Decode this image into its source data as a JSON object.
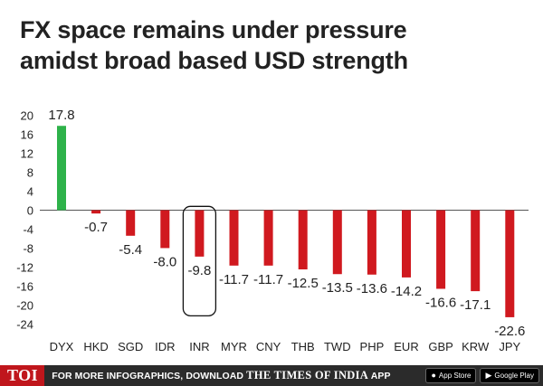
{
  "title_line1": "FX space remains under pressure",
  "title_line2": "amidst broad based USD strength",
  "colors": {
    "positive": "#2eb24a",
    "negative": "#d0191f",
    "footer_bg": "#2b2b2b",
    "logo_bg": "#c0161c"
  },
  "footer": {
    "logo": "TOI",
    "promo": "FOR MORE INFOGRAPHICS, DOWNLOAD",
    "brand": "THE TIMES OF INDIA",
    "app": "APP",
    "app_store": "App Store",
    "google_play": "Google Play"
  },
  "chart_data": {
    "type": "bar",
    "title": "FX space remains under pressure amidst broad based USD strength",
    "xlabel": "",
    "ylabel": "",
    "ylim": [
      -24,
      20
    ],
    "yticks": [
      20,
      16,
      12,
      8,
      4,
      0,
      -4,
      -8,
      -12,
      -16,
      -20,
      -24
    ],
    "ytick_labels": [
      "20",
      "16",
      "12",
      "8",
      "4",
      "0",
      "-4",
      "-8",
      "-12",
      "-16",
      "-20",
      "-24"
    ],
    "grid": false,
    "categories": [
      "DYX",
      "HKD",
      "SGD",
      "IDR",
      "INR",
      "MYR",
      "CNY",
      "THB",
      "TWD",
      "PHP",
      "EUR",
      "GBP",
      "KRW",
      "JPY"
    ],
    "values": [
      17.8,
      -0.7,
      -5.4,
      -8.0,
      -9.8,
      -11.7,
      -11.7,
      -12.5,
      -13.5,
      -13.6,
      -14.2,
      -16.6,
      -17.1,
      -22.6
    ],
    "value_labels": [
      "17.8",
      "-0.7",
      "-5.4",
      "-8.0",
      "-9.8",
      "-11.7",
      "-11.7",
      "-12.5",
      "-13.5",
      "-13.6",
      "-14.2",
      "-16.6",
      "-17.1",
      "-22.6"
    ],
    "highlight": "INR"
  }
}
